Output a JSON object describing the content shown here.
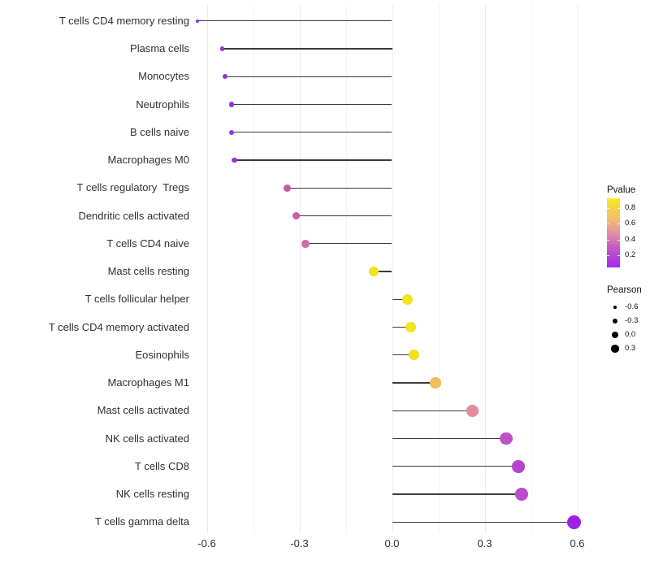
{
  "chart_data": {
    "type": "lollipop",
    "orientation": "horizontal",
    "title": "",
    "xlabel": "",
    "ylabel": "",
    "grid": true,
    "xlim": [
      -0.64,
      0.67
    ],
    "x_ticks": [
      "-0.6",
      "-0.3",
      "0.0",
      "0.3",
      "0.6"
    ],
    "x_tick_values": [
      -0.6,
      -0.3,
      0.0,
      0.3,
      0.6
    ],
    "x_minor_values": [
      -0.45,
      -0.15,
      0.15,
      0.45
    ],
    "points": [
      {
        "label": "T cells CD4 memory resting",
        "pearson": -0.63,
        "pvalue": 0.02,
        "color": "#7E2CE0"
      },
      {
        "label": "Plasma cells",
        "pearson": -0.55,
        "pvalue": 0.06,
        "color": "#9530E4"
      },
      {
        "label": "Monocytes",
        "pearson": -0.54,
        "pvalue": 0.06,
        "color": "#9530E4"
      },
      {
        "label": "Neutrophils",
        "pearson": -0.52,
        "pvalue": 0.07,
        "color": "#9632E2"
      },
      {
        "label": "B cells naive",
        "pearson": -0.52,
        "pvalue": 0.07,
        "color": "#9632E2"
      },
      {
        "label": "Macrophages M0",
        "pearson": -0.51,
        "pvalue": 0.07,
        "color": "#9632E2"
      },
      {
        "label": "T cells regulatory  Tregs",
        "pearson": -0.34,
        "pvalue": 0.38,
        "color": "#C45AA6"
      },
      {
        "label": "Dendritic cells activated",
        "pearson": -0.31,
        "pvalue": 0.4,
        "color": "#C45FA5"
      },
      {
        "label": "T cells CD4 naive",
        "pearson": -0.28,
        "pvalue": 0.45,
        "color": "#CD6FA6"
      },
      {
        "label": "Mast cells resting",
        "pearson": -0.06,
        "pvalue": 0.88,
        "color": "#F2E41E"
      },
      {
        "label": "T cells follicular helper",
        "pearson": 0.05,
        "pvalue": 0.88,
        "color": "#F2E41E"
      },
      {
        "label": "T cells CD4 memory activated",
        "pearson": 0.06,
        "pvalue": 0.87,
        "color": "#F2E41E"
      },
      {
        "label": "Eosinophils",
        "pearson": 0.07,
        "pvalue": 0.85,
        "color": "#F2DF20"
      },
      {
        "label": "Macrophages M1",
        "pearson": 0.14,
        "pvalue": 0.68,
        "color": "#EFBE59"
      },
      {
        "label": "Mast cells activated",
        "pearson": 0.26,
        "pvalue": 0.52,
        "color": "#E38CA0"
      },
      {
        "label": "NK cells activated",
        "pearson": 0.37,
        "pvalue": 0.25,
        "color": "#BC50C4"
      },
      {
        "label": "T cells CD8",
        "pearson": 0.41,
        "pvalue": 0.21,
        "color": "#B545CF"
      },
      {
        "label": "NK cells resting",
        "pearson": 0.42,
        "pvalue": 0.23,
        "color": "#B94CCB"
      },
      {
        "label": "T cells gamma delta",
        "pearson": 0.59,
        "pvalue": 0.08,
        "color": "#9E20E4"
      }
    ],
    "legends": {
      "pvalue": {
        "title": "Pvalue",
        "labels": [
          "0.8",
          "0.6",
          "0.4",
          "0.2"
        ],
        "gradient": [
          {
            "color": "#F9E821",
            "pos": 0
          },
          {
            "color": "#F3BC6C",
            "pos": 30
          },
          {
            "color": "#E391A2",
            "pos": 50
          },
          {
            "color": "#C259C7",
            "pos": 72
          },
          {
            "color": "#A32AEF",
            "pos": 100
          }
        ]
      },
      "pearson": {
        "title": "Pearson",
        "entries": [
          {
            "label": "-0.6",
            "d": 3.6
          },
          {
            "label": "-0.3",
            "d": 6.8
          },
          {
            "label": "0.0",
            "d": 8.6
          },
          {
            "label": "0.3",
            "d": 9.6
          }
        ]
      }
    },
    "style": {
      "segment_color": "#3b3b3b",
      "grid_major_color": "#ebebeb",
      "grid_minor_color": "#f3f3f3",
      "axis_text_color": "#303030",
      "background": "#ffffff"
    }
  }
}
